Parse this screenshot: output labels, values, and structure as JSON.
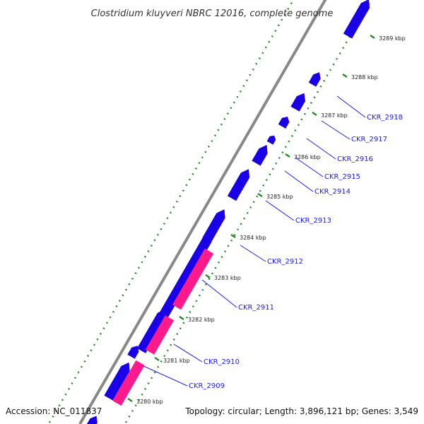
{
  "title": "Clostridium kluyveri NBRC 12016, complete genome",
  "accession": "Accession: NC_011837",
  "topology": "Topology: circular; Length: 3,896,121 bp; Genes: 3,549",
  "colors": {
    "backbone": "#888888",
    "forward_gene": "#1a00e6",
    "rna_gene": "#ff1a8c",
    "gc_dots": "#2a8a2a",
    "label": "#1a1aff"
  },
  "ticks": [
    "3280 kbp",
    "3281 kbp",
    "3282 kbp",
    "3283 kbp",
    "3284 kbp",
    "3285 kbp",
    "3286 kbp",
    "3287 kbp",
    "3288 kbp",
    "3289 kbp"
  ],
  "gene_labels": [
    "CKR_2909",
    "CKR_2910",
    "CKR_2911",
    "CKR_2912",
    "CKR_2913",
    "CKR_2914",
    "CKR_2915",
    "CKR_2916",
    "CKR_2917",
    "CKR_2918"
  ]
}
